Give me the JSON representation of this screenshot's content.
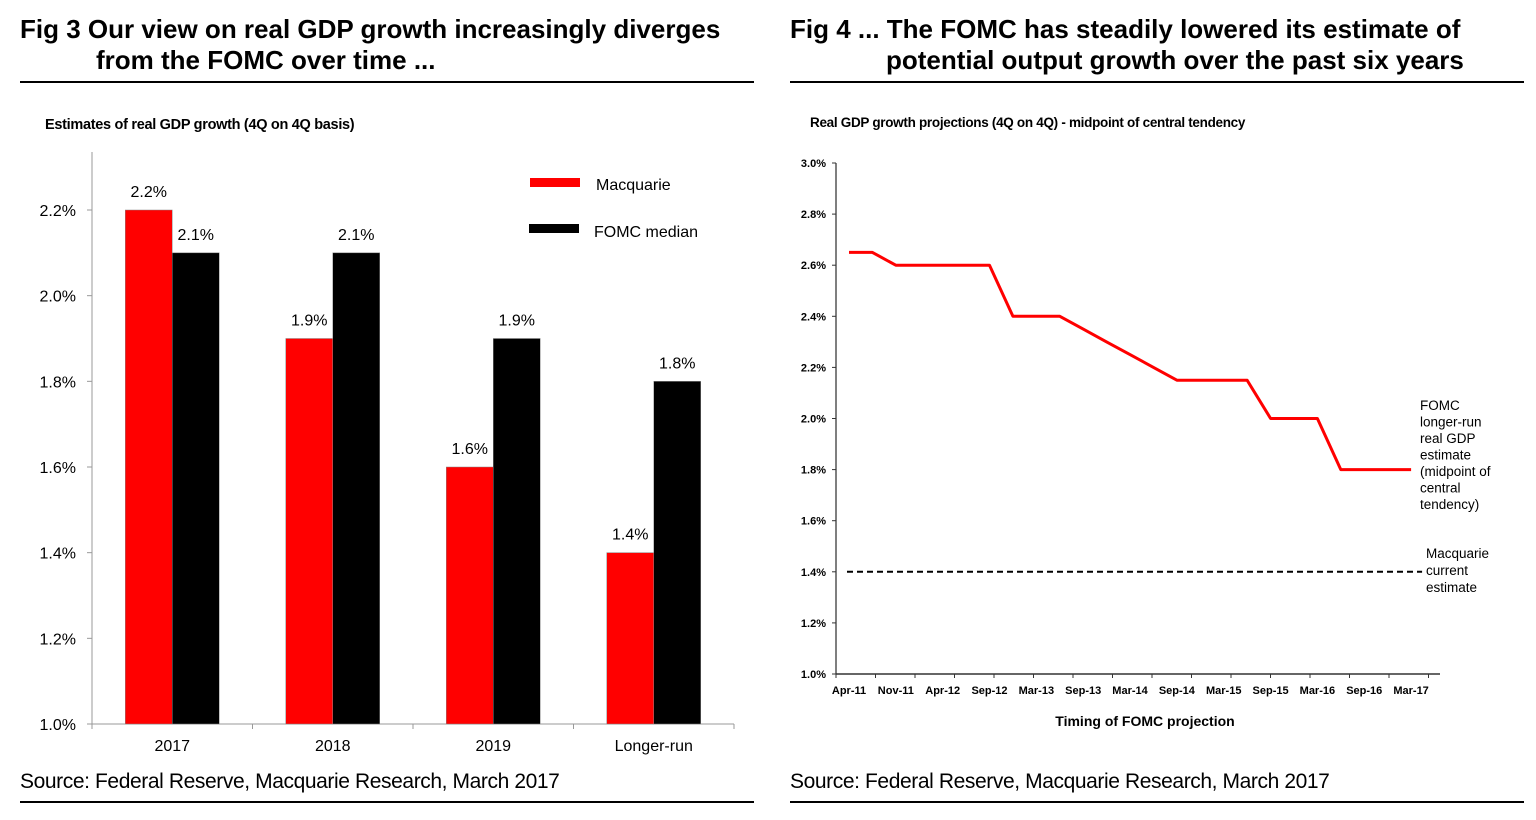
{
  "figures": [
    {
      "title_line1": "Fig 3  Our view on real GDP growth increasingly diverges",
      "title_line2": "from the FOMC over time  ...",
      "source": "Source: Federal Reserve, Macquarie Research, March 2017"
    },
    {
      "title_line1": "Fig 4 ... The FOMC has steadily lowered its estimate of",
      "title_line2": "potential output growth over the past six years",
      "source": "Source: Federal Reserve, Macquarie Research, March 2017"
    }
  ],
  "colors": {
    "macquarie": "#ff0000",
    "fomc": "#000000",
    "axis": "#999999"
  },
  "chart_data": [
    {
      "type": "bar",
      "title": "Estimates of real GDP growth (4Q on 4Q basis)",
      "xlabel": "",
      "ylabel": "",
      "categories": [
        "2017",
        "2018",
        "2019",
        "Longer-run"
      ],
      "series": [
        {
          "name": "Macquarie",
          "values": [
            2.2,
            1.9,
            1.6,
            1.4
          ],
          "labels": [
            "2.2%",
            "1.9%",
            "1.6%",
            "1.4%"
          ]
        },
        {
          "name": "FOMC median",
          "values": [
            2.1,
            2.1,
            1.9,
            1.8
          ],
          "labels": [
            "2.1%",
            "2.1%",
            "1.9%",
            "1.8%"
          ]
        }
      ],
      "ylim": [
        1.0,
        2.33
      ],
      "yticks": [
        1.0,
        1.2,
        1.4,
        1.6,
        1.8,
        2.0,
        2.2
      ],
      "ytick_labels": [
        "1.0%",
        "1.2%",
        "1.4%",
        "1.6%",
        "1.8%",
        "2.0%",
        "2.2%"
      ],
      "legend": [
        "Macquarie",
        "FOMC median"
      ],
      "legend_position": "top-right",
      "grid": false
    },
    {
      "type": "line",
      "title": "Real GDP growth projections (4Q on 4Q) - midpoint of central tendency",
      "xlabel": "Timing of FOMC  projection",
      "ylabel": "",
      "x_tick_labels": [
        "Apr-11",
        "Nov-11",
        "Apr-12",
        "Sep-12",
        "Mar-13",
        "Sep-13",
        "Mar-14",
        "Sep-14",
        "Mar-15",
        "Sep-15",
        "Mar-16",
        "Sep-16",
        "Mar-17"
      ],
      "x_points": 25,
      "label_every": 2,
      "series": [
        {
          "name": "FOMC longer-run real GDP estimate (midpoint of central tendency)",
          "values": [
            2.65,
            2.65,
            2.6,
            2.6,
            2.6,
            2.6,
            2.6,
            2.4,
            2.4,
            2.4,
            2.35,
            2.3,
            2.25,
            2.2,
            2.15,
            2.15,
            2.15,
            2.15,
            2.0,
            2.0,
            2.0,
            1.8,
            1.8,
            1.8,
            1.8
          ],
          "style": "solid"
        },
        {
          "name": "Macquarie current estimate",
          "values": [
            1.4,
            1.4
          ],
          "style": "dashed"
        }
      ],
      "annotations": [
        {
          "lines": [
            "FOMC",
            "longer-run",
            "real GDP",
            "estimate",
            "(midpoint of",
            "central",
            "tendency)"
          ]
        },
        {
          "lines": [
            "Macquarie",
            "current",
            "estimate"
          ]
        }
      ],
      "ylim": [
        1.0,
        3.0
      ],
      "yticks": [
        1.0,
        1.2,
        1.4,
        1.6,
        1.8,
        2.0,
        2.2,
        2.4,
        2.6,
        2.8,
        3.0
      ],
      "ytick_labels": [
        "1.0%",
        "1.2%",
        "1.4%",
        "1.6%",
        "1.8%",
        "2.0%",
        "2.2%",
        "2.4%",
        "2.6%",
        "2.8%",
        "3.0%"
      ],
      "grid": false
    }
  ]
}
